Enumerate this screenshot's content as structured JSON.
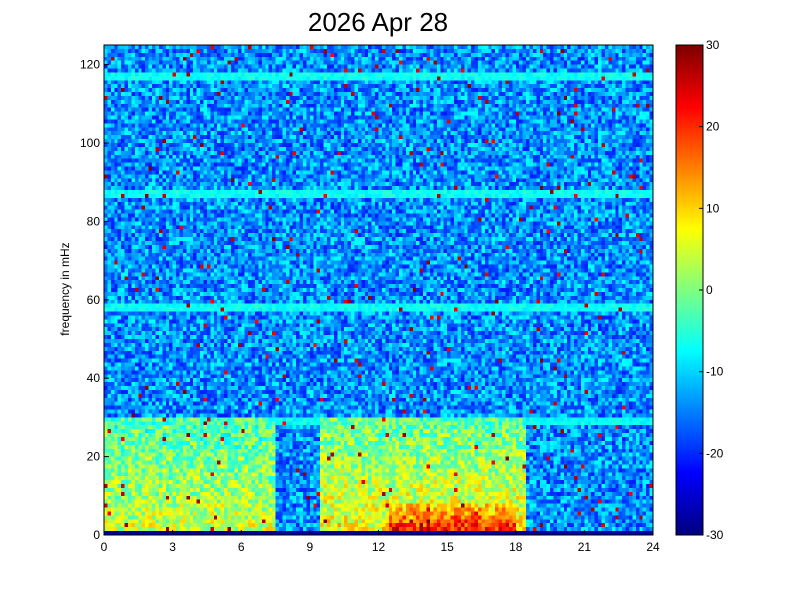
{
  "chart_data": {
    "type": "heatmap",
    "title": "2026 Apr 28",
    "xlabel": "",
    "ylabel": "frequency in mHz",
    "xlim": [
      0,
      24
    ],
    "ylim": [
      0,
      125
    ],
    "x_ticks": [
      "0",
      "3",
      "6",
      "9",
      "12",
      "15",
      "18",
      "21",
      "24"
    ],
    "y_ticks": [
      "0",
      "20",
      "40",
      "60",
      "80",
      "100",
      "120"
    ],
    "colorbar": {
      "colormap": "jet",
      "range": [
        -30,
        30
      ],
      "ticks": [
        "30",
        "20",
        "10",
        "0",
        "-10",
        "-20",
        "-30"
      ]
    },
    "background_level_db": -14,
    "horizontal_bands_mHz": [
      {
        "frequency": 117,
        "level_db": -7
      },
      {
        "frequency": 87,
        "level_db": -7
      },
      {
        "frequency": 58,
        "level_db": -7
      },
      {
        "frequency": 29,
        "level_db": -7
      }
    ],
    "broadband_regions": [
      {
        "x_range_hours": [
          0,
          7.5
        ],
        "freq_range_mHz": [
          0,
          30
        ],
        "level_db": 5
      },
      {
        "x_range_hours": [
          9.5,
          18.5
        ],
        "freq_range_mHz": [
          0,
          30
        ],
        "level_db": 8
      },
      {
        "x_range_hours": [
          12.5,
          18
        ],
        "freq_range_mHz": [
          0,
          8
        ],
        "level_db": 25
      }
    ],
    "colors": {
      "dark_blue": "#00008f",
      "blue": "#0000ff",
      "cyan": "#00ffff",
      "yellow": "#ffff00",
      "red": "#ff0000",
      "dark_red": "#800000"
    }
  }
}
